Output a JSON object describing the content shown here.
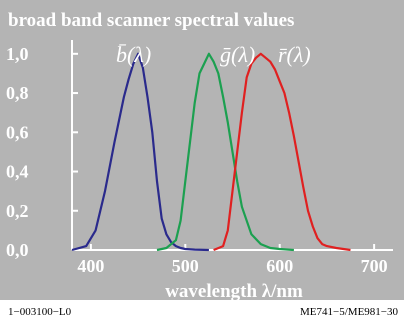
{
  "chart_data": {
    "type": "line",
    "title": "broad band scanner spectral values",
    "xlabel": "wavelength λ/nm",
    "ylabel": "",
    "xlim": [
      380,
      720
    ],
    "ylim": [
      0.0,
      1.05
    ],
    "x_ticks": [
      400,
      500,
      600,
      700
    ],
    "y_ticks": [
      "0,0",
      "0,2",
      "0,4",
      "0,6",
      "0,8",
      "1,0"
    ],
    "y_tick_values": [
      0.0,
      0.2,
      0.4,
      0.6,
      0.8,
      1.0
    ],
    "grid": false,
    "background": "#b4b4b4",
    "series": [
      {
        "name": "b̄(λ)",
        "symbol": "b",
        "color": "#2a2a8c",
        "x": [
          380,
          395,
          405,
          415,
          425,
          435,
          440,
          445,
          450,
          455,
          460,
          465,
          470,
          475,
          480,
          485,
          490,
          495,
          500,
          510,
          525
        ],
        "y": [
          0.0,
          0.02,
          0.1,
          0.3,
          0.55,
          0.78,
          0.87,
          0.95,
          1.0,
          0.93,
          0.78,
          0.6,
          0.35,
          0.16,
          0.08,
          0.04,
          0.02,
          0.01,
          0.005,
          0.002,
          0.0
        ]
      },
      {
        "name": "ḡ(λ)",
        "symbol": "g",
        "color": "#1ca050",
        "x": [
          470,
          480,
          490,
          495,
          500,
          505,
          510,
          515,
          520,
          525,
          530,
          535,
          540,
          545,
          550,
          555,
          560,
          570,
          580,
          590,
          600,
          615
        ],
        "y": [
          0.0,
          0.01,
          0.05,
          0.15,
          0.35,
          0.55,
          0.75,
          0.9,
          0.95,
          1.0,
          0.96,
          0.9,
          0.78,
          0.65,
          0.5,
          0.35,
          0.22,
          0.08,
          0.03,
          0.01,
          0.005,
          0.0
        ]
      },
      {
        "name": "r̄(λ)",
        "symbol": "r",
        "color": "#e02020",
        "x": [
          530,
          540,
          545,
          550,
          560,
          565,
          570,
          575,
          580,
          585,
          590,
          595,
          600,
          605,
          610,
          615,
          620,
          625,
          630,
          635,
          640,
          645,
          650,
          660,
          675
        ],
        "y": [
          0.0,
          0.02,
          0.1,
          0.3,
          0.7,
          0.88,
          0.95,
          0.98,
          1.0,
          0.98,
          0.96,
          0.92,
          0.86,
          0.8,
          0.7,
          0.58,
          0.45,
          0.32,
          0.2,
          0.12,
          0.06,
          0.03,
          0.02,
          0.01,
          0.0
        ]
      }
    ]
  },
  "footer": {
    "left": "1−003100−L0",
    "right": "ME741−5/ME981−30"
  }
}
